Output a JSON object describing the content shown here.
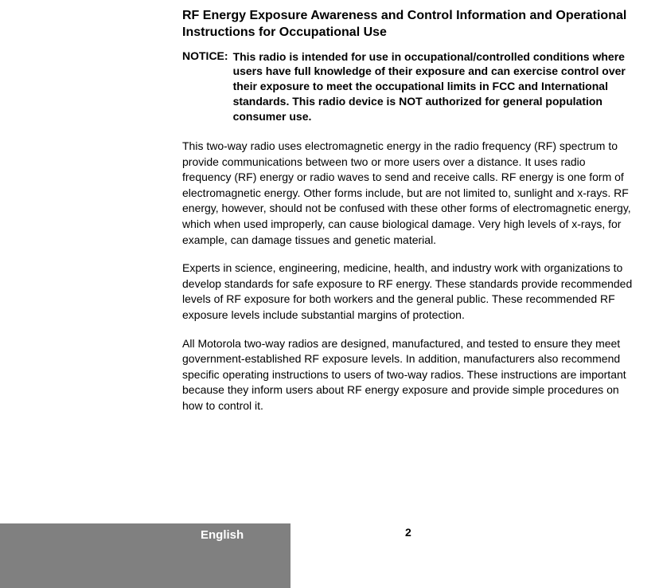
{
  "heading": "RF Energy Exposure Awareness and Control Information and Operational Instructions for Occupational Use",
  "notice": {
    "label": "NOTICE:",
    "text": "This radio is intended for use in occupational/controlled conditions where users have full knowledge of their exposure and can exercise control over their exposure to meet the occupational limits in FCC and International standards. This radio device is NOT authorized for general population consumer use."
  },
  "para1": "This two-way radio uses electromagnetic energy in the radio frequency (RF) spectrum to provide communications between two or more users over a distance. It uses radio frequency (RF) energy or radio waves to send and receive calls. RF energy is one form of electromagnetic energy. Other forms include, but are not limited to, sunlight and x-rays. RF energy, however, should not be confused with these other forms of electromagnetic energy, which when used improperly, can cause biological damage. Very high levels of x-rays, for example, can damage tissues and genetic material.",
  "para2": "Experts in science, engineering, medicine, health, and industry work with organizations to develop standards for safe exposure to RF energy. These standards provide recommended levels of RF exposure for both workers and the general public. These recommended RF exposure levels include substantial margins of protection.",
  "para3": "All Motorola two-way radios are designed, manufactured, and tested to ensure they meet government-established RF exposure levels. In addition, manufacturers also recommend specific operating instructions to users of two-way radios. These instructions are important because they inform users about RF energy exposure and provide simple procedures on how to control it.",
  "footer": {
    "language": "English",
    "page": "2"
  },
  "styles": {
    "background_color": "#ffffff",
    "text_color": "#000000",
    "footer_bar_color": "#808080",
    "footer_text_color": "#ffffff",
    "heading_fontsize": 16,
    "body_fontsize": 14,
    "footer_fontsize": 15
  }
}
